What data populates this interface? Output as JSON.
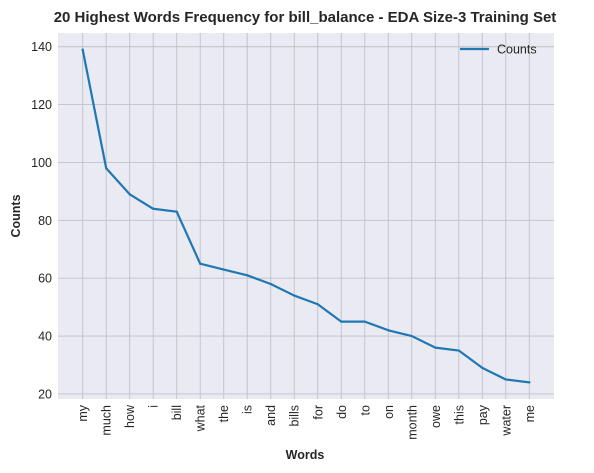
{
  "chart_data": {
    "type": "line",
    "title": "20 Highest Words Frequency for bill_balance - EDA Size-3 Training Set",
    "xlabel": "Words",
    "ylabel": "Counts",
    "categories": [
      "my",
      "much",
      "how",
      "i",
      "bill",
      "what",
      "the",
      "is",
      "and",
      "bills",
      "for",
      "do",
      "to",
      "on",
      "month",
      "owe",
      "this",
      "pay",
      "water",
      "me"
    ],
    "series": [
      {
        "name": "Counts",
        "values": [
          139,
          98,
          89,
          84,
          83,
          65,
          63,
          61,
          58,
          54,
          51,
          45,
          45,
          42,
          40,
          36,
          35,
          29,
          25,
          24
        ]
      }
    ],
    "ylim": [
      18.25,
      144.75
    ],
    "yticks": [
      20,
      40,
      60,
      80,
      100,
      120,
      140
    ],
    "grid": true,
    "legend": "top-right",
    "colors": {
      "line": "#1f77b4",
      "plot_bg": "#eaeaf2",
      "grid": "#c0c0c8"
    }
  }
}
